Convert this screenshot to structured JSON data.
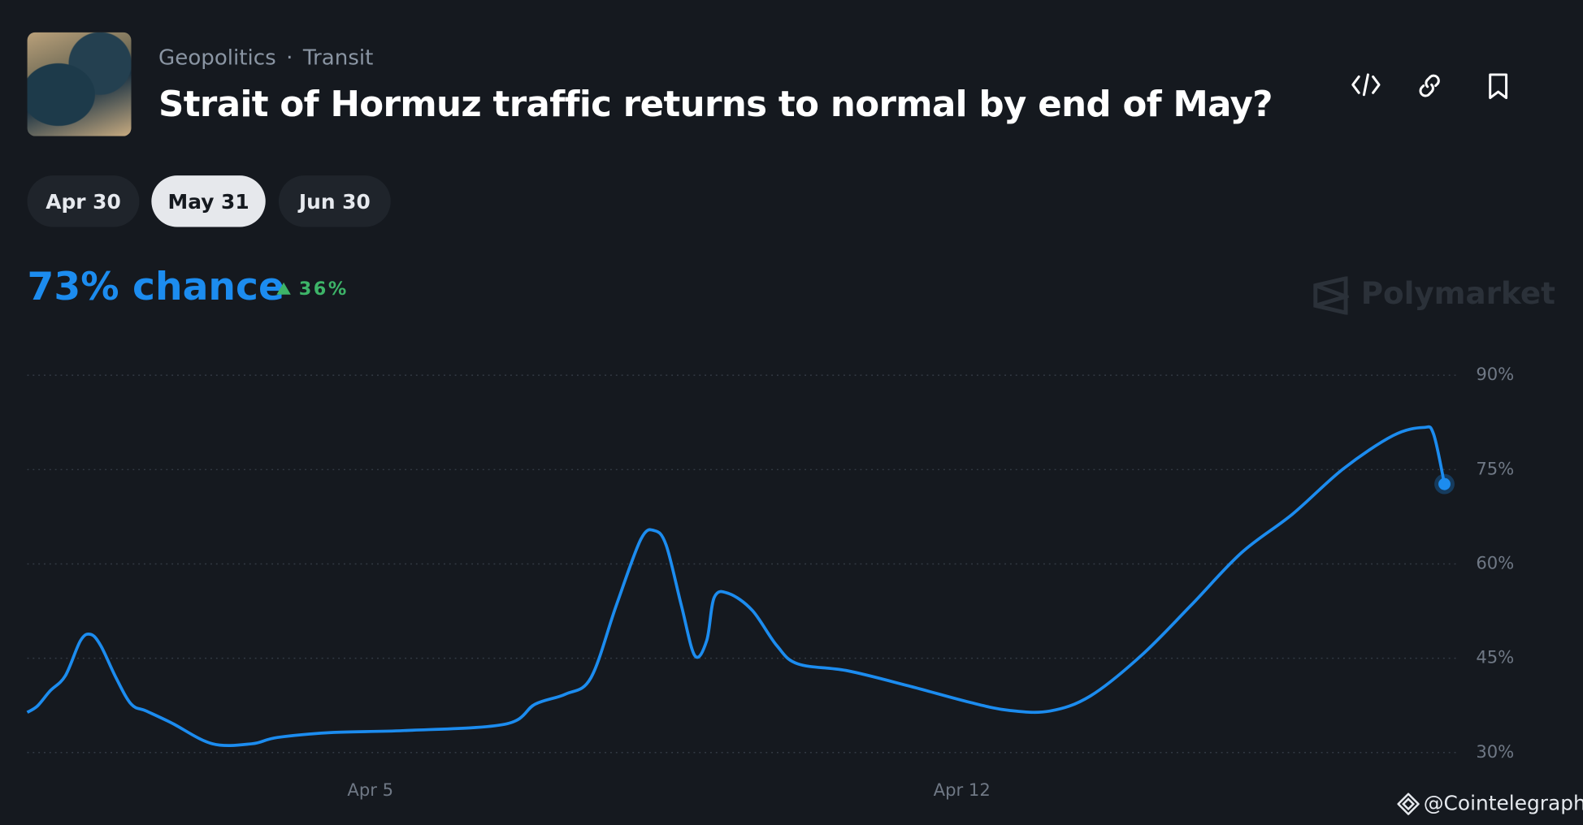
{
  "header": {
    "categories": [
      "Geopolitics",
      "Transit"
    ],
    "title": "Strait of Hormuz traffic returns to normal by end of May?"
  },
  "date_tabs": [
    "Apr 30",
    "May 31",
    "Jun 30"
  ],
  "chance": "73% chance",
  "change": "36%",
  "brand": "Polymarket",
  "watermark": "@Cointelegraph",
  "chart_data": {
    "type": "line",
    "x": [
      0.94,
      1.06,
      1.21,
      1.39,
      1.57,
      1.69,
      1.81,
      1.99,
      2.17,
      2.35,
      2.65,
      3.13,
      3.6,
      3.9,
      4.56,
      5.4,
      6.59,
      6.95,
      7.31,
      7.61,
      7.91,
      8.2,
      8.36,
      8.5,
      8.68,
      8.84,
      8.98,
      9.07,
      9.24,
      9.52,
      9.81,
      10.06,
      10.65,
      11.37,
      12.09,
      12.56,
      13.04,
      13.52,
      14.12,
      14.71,
      15.31,
      15.91,
      16.51,
      17.1,
      17.46,
      17.58,
      17.71
    ],
    "values": [
      36.4,
      37.4,
      39.8,
      42.2,
      47.8,
      48.8,
      47.0,
      41.9,
      37.7,
      36.6,
      34.7,
      31.4,
      31.4,
      32.4,
      33.2,
      33.5,
      34.5,
      37.7,
      39.3,
      41.9,
      53.4,
      63.9,
      65.3,
      63.0,
      53.4,
      45.4,
      47.8,
      54.7,
      55.3,
      52.6,
      47.0,
      44.1,
      43.0,
      40.6,
      38.0,
      36.7,
      36.6,
      39.0,
      45.4,
      53.4,
      61.8,
      67.9,
      75.1,
      80.4,
      81.7,
      80.7,
      72.7
    ],
    "color": "#1c8cef",
    "xlim": [
      0.94,
      17.88
    ],
    "xticks": [
      {
        "value": 5,
        "label": "Apr 5"
      },
      {
        "value": 12,
        "label": "Apr 12"
      }
    ],
    "ylim": [
      30,
      90
    ],
    "yticks": [
      {
        "value": 30,
        "label": "30%"
      },
      {
        "value": 45,
        "label": "45%"
      },
      {
        "value": 60,
        "label": "60%"
      },
      {
        "value": 75,
        "label": "75%"
      },
      {
        "value": 90,
        "label": "90%"
      }
    ],
    "grid": true
  }
}
